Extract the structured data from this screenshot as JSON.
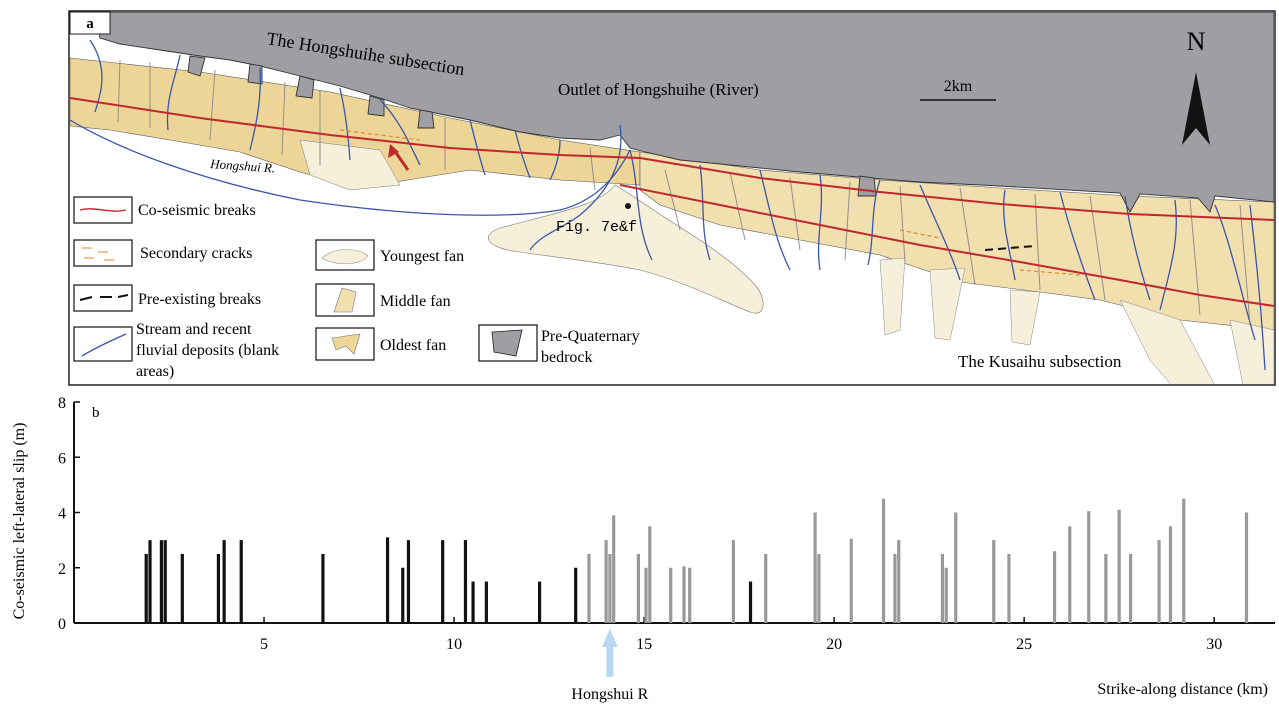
{
  "map": {
    "panel_label": "a",
    "title_hongshuihe": "The Hongshuihe subsection",
    "outlet_label": "Outlet of Hongshuihe (River)",
    "scale_label": "2km",
    "north_label": "N",
    "river_label": "Hongshui R.",
    "figure_ref": "Fig. 7e&f",
    "title_kusaihu": "The Kusaihu subsection",
    "legend": {
      "coseismic": "Co-seismic breaks",
      "secondary": "Secondary cracks",
      "preexisting": "Pre-existing breaks",
      "stream_line1": "Stream and recent",
      "stream_line2": "fluvial deposits (blank",
      "stream_line3": "areas)",
      "youngest": "Youngest fan",
      "middle": "Middle fan",
      "oldest": "Oldest fan",
      "bedrock_line1": "Pre-Quaternary",
      "bedrock_line2": "bedrock"
    },
    "colors": {
      "bedrock": "#9e9ea3",
      "youngest_fan": "#f6efd9",
      "middle_fan": "#f1dfae",
      "oldest_fan": "#ecd596",
      "stream": "#3b56a8",
      "coseismic": "#c0282d",
      "secondary": "#e08a2e"
    }
  },
  "chart_data": {
    "type": "bar",
    "panel_label": "b",
    "ylabel": "Co-seismic left-lateral slip (m)",
    "xlabel": "Strike-along distance (km)",
    "ylim": [
      0,
      8
    ],
    "xlim": [
      0,
      31.6
    ],
    "yticks": [
      0,
      2,
      4,
      6,
      8
    ],
    "xticks": [
      5,
      10,
      15,
      20,
      25,
      30
    ],
    "annotation": {
      "text": "Hongshui R",
      "x": 14.1
    },
    "colors": {
      "measured_dark": "#111111",
      "measured_gray": "#999999",
      "annotation_arrow": "#b7d8ef"
    },
    "series": [
      {
        "color": "#111111",
        "x": [
          1.9,
          2.0,
          2.3,
          2.4,
          2.85,
          3.8,
          3.95,
          4.4,
          6.55,
          8.25,
          8.65,
          8.8,
          9.7,
          10.3,
          10.5,
          10.85,
          12.25,
          13.2,
          17.8
        ],
        "values": [
          2.5,
          3.0,
          3.0,
          3.0,
          2.5,
          2.5,
          3.0,
          3.0,
          2.5,
          3.1,
          2.0,
          3.0,
          3.0,
          3.0,
          1.5,
          1.5,
          1.5,
          2.0,
          1.5
        ]
      },
      {
        "color": "#999999",
        "x": [
          13.55,
          14.0,
          14.1,
          14.2,
          14.85,
          15.05,
          15.15,
          15.7,
          16.05,
          16.2,
          17.35,
          18.2,
          19.5,
          19.6,
          20.45,
          21.3,
          21.6,
          21.7,
          22.85,
          22.95,
          23.2,
          24.2,
          24.6,
          25.8,
          26.2,
          26.7,
          27.15,
          27.5,
          27.8,
          28.55,
          28.85,
          29.2,
          30.85
        ],
        "values": [
          2.5,
          3.0,
          2.5,
          3.9,
          2.5,
          2.0,
          3.5,
          2.0,
          2.05,
          2.0,
          3.0,
          2.5,
          4.0,
          2.5,
          3.05,
          4.5,
          2.5,
          3.0,
          2.5,
          2.0,
          4.0,
          3.0,
          2.5,
          2.6,
          3.5,
          4.05,
          2.5,
          4.1,
          2.5,
          3.0,
          3.5,
          4.5,
          4.0
        ]
      }
    ]
  }
}
